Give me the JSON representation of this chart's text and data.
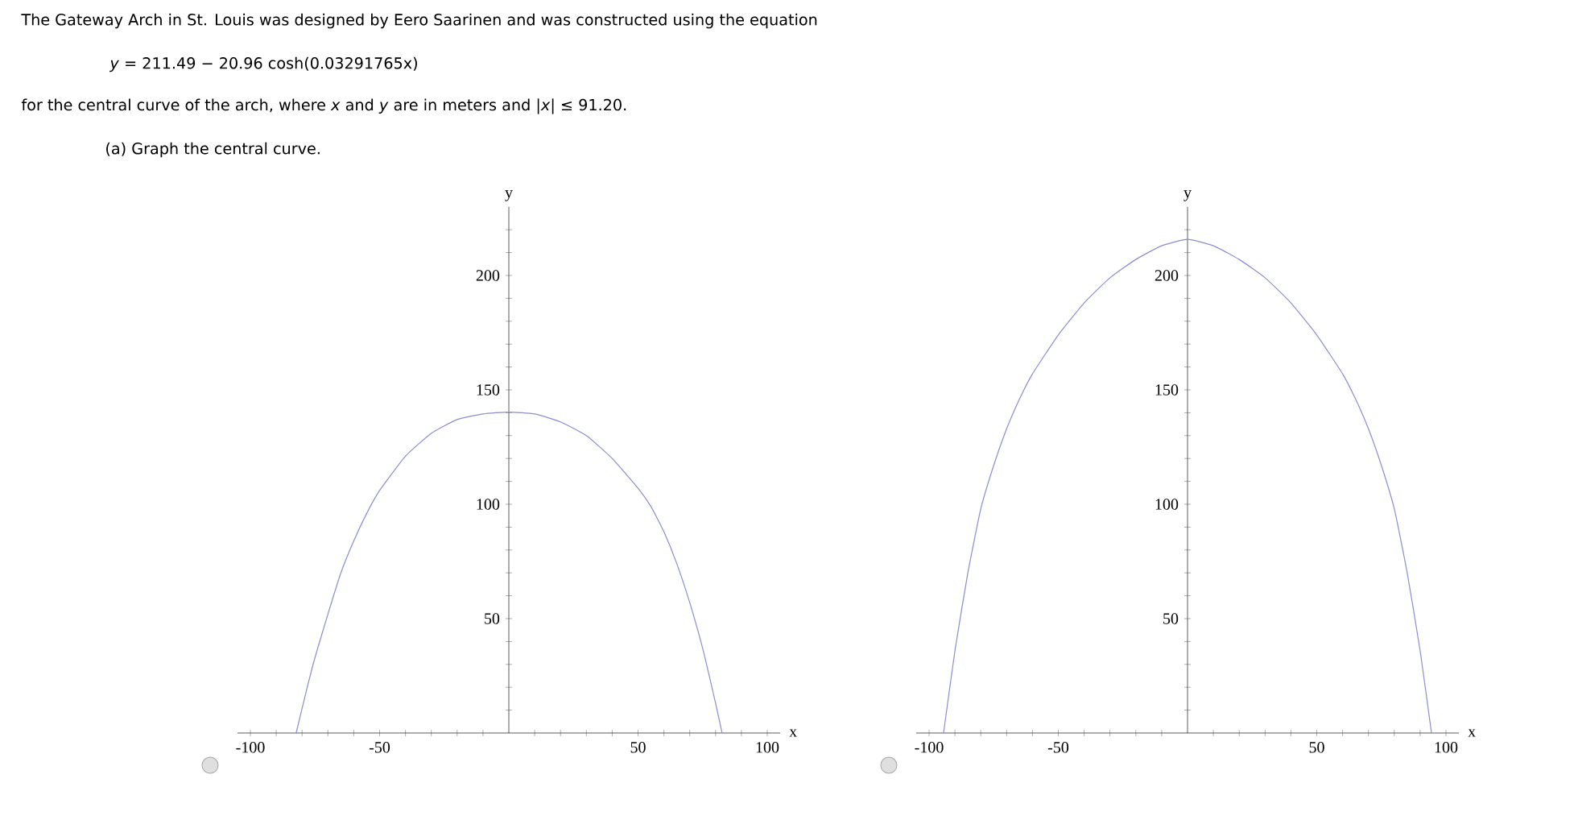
{
  "chart_data": [
    {
      "type": "other",
      "annotations": [
        "The Gateway Arch in St. Louis was designed by Eero Saarinen and was constructed using the equation",
        "*y* = 211.49 − 20.96 cosh(0.03291765x)",
        "for the central curve of the arch, where *x* and *y* are in meters and  |*x*| ≤ 91.20.",
        "(a) Graph the central curve."
      ]
    },
    {
      "type": "line",
      "xlabel": "x",
      "ylabel": "y",
      "xlim": [
        -105,
        105
      ],
      "ylim": [
        0,
        230
      ],
      "grid": false,
      "marker": "none",
      "line_style": "solid",
      "xticks": [
        -100,
        {
          "value": -90,
          "label": null
        },
        {
          "value": -80,
          "label": null
        },
        {
          "value": -70,
          "label": null
        },
        {
          "value": -60,
          "label": null
        },
        -50,
        {
          "value": -40,
          "label": null
        },
        {
          "value": -30,
          "label": null
        },
        {
          "value": -20,
          "label": null
        },
        {
          "value": -10,
          "label": null
        },
        {
          "value": 10,
          "label": null
        },
        {
          "value": 20,
          "label": null
        },
        {
          "value": 30,
          "label": null
        },
        {
          "value": 40,
          "label": null
        },
        50,
        {
          "value": 60,
          "label": null
        },
        {
          "value": 70,
          "label": null
        },
        {
          "value": 80,
          "label": null
        },
        {
          "value": 90,
          "label": null
        },
        100
      ],
      "yticks": [
        {
          "value": 10,
          "label": null
        },
        {
          "value": 20,
          "label": null
        },
        {
          "value": 30,
          "label": null
        },
        {
          "value": 40,
          "label": null
        },
        50,
        {
          "value": 60,
          "label": null
        },
        {
          "value": 70,
          "label": null
        },
        {
          "value": 80,
          "label": null
        },
        {
          "value": 90,
          "label": null
        },
        100,
        {
          "value": 110,
          "label": null
        },
        {
          "value": 120,
          "label": null
        },
        {
          "value": 130,
          "label": null
        },
        {
          "value": 140,
          "label": null
        },
        150,
        {
          "value": 160,
          "label": null
        },
        {
          "value": 170,
          "label": null
        },
        {
          "value": 180,
          "label": null
        },
        {
          "value": 190,
          "label": null
        },
        200,
        {
          "value": 210,
          "label": null
        },
        {
          "value": 220,
          "label": null
        }
      ],
      "x": [
        -82.3,
        -78,
        -75,
        -70,
        -65,
        -60,
        -55,
        -50,
        -40,
        -30,
        -20,
        -10,
        0,
        10,
        20,
        30,
        40,
        50,
        55,
        60,
        65,
        70,
        75,
        80,
        82.5
      ],
      "series": [
        {
          "color": "#8c8cd2",
          "values": [
            0,
            20,
            33,
            52,
            70,
            84,
            96,
            106,
            121,
            131,
            137,
            139.5,
            140.3,
            139.5,
            136,
            130,
            120,
            107,
            99,
            88,
            74,
            57,
            37,
            13,
            0
          ]
        }
      ]
    },
    {
      "type": "line",
      "xlabel": "x",
      "ylabel": "y",
      "xlim": [
        -105,
        105
      ],
      "ylim": [
        0,
        230
      ],
      "grid": false,
      "marker": "none",
      "line_style": "solid",
      "xticks": [
        -100,
        {
          "value": -90,
          "label": null
        },
        {
          "value": -80,
          "label": null
        },
        {
          "value": -70,
          "label": null
        },
        {
          "value": -60,
          "label": null
        },
        -50,
        {
          "value": -40,
          "label": null
        },
        {
          "value": -30,
          "label": null
        },
        {
          "value": -20,
          "label": null
        },
        {
          "value": -10,
          "label": null
        },
        {
          "value": 10,
          "label": null
        },
        {
          "value": 20,
          "label": null
        },
        {
          "value": 30,
          "label": null
        },
        {
          "value": 40,
          "label": null
        },
        50,
        {
          "value": 60,
          "label": null
        },
        {
          "value": 70,
          "label": null
        },
        {
          "value": 80,
          "label": null
        },
        {
          "value": 90,
          "label": null
        },
        100
      ],
      "yticks": [
        {
          "value": 10,
          "label": null
        },
        {
          "value": 20,
          "label": null
        },
        {
          "value": 30,
          "label": null
        },
        {
          "value": 40,
          "label": null
        },
        50,
        {
          "value": 60,
          "label": null
        },
        {
          "value": 70,
          "label": null
        },
        {
          "value": 80,
          "label": null
        },
        {
          "value": 90,
          "label": null
        },
        100,
        {
          "value": 110,
          "label": null
        },
        {
          "value": 120,
          "label": null
        },
        {
          "value": 130,
          "label": null
        },
        {
          "value": 140,
          "label": null
        },
        150,
        {
          "value": 160,
          "label": null
        },
        {
          "value": 170,
          "label": null
        },
        {
          "value": 180,
          "label": null
        },
        {
          "value": 190,
          "label": null
        },
        200,
        {
          "value": 210,
          "label": null
        },
        {
          "value": 220,
          "label": null
        }
      ],
      "x": [
        -94.4,
        -90,
        -85,
        -80,
        -75,
        -70,
        -65,
        -60,
        -50,
        -40,
        -30,
        -20,
        -10,
        0,
        10,
        20,
        30,
        40,
        50,
        60,
        65,
        70,
        75,
        80,
        85,
        90,
        94.4
      ],
      "series": [
        {
          "color": "#8c8cd2",
          "values": [
            0,
            36,
            70,
            98,
            117,
            133,
            146,
            157,
            174,
            188,
            199,
            207,
            213,
            215.8,
            213,
            207,
            199,
            188,
            174,
            157,
            146,
            133,
            117,
            98,
            70,
            36,
            0
          ]
        }
      ]
    }
  ]
}
